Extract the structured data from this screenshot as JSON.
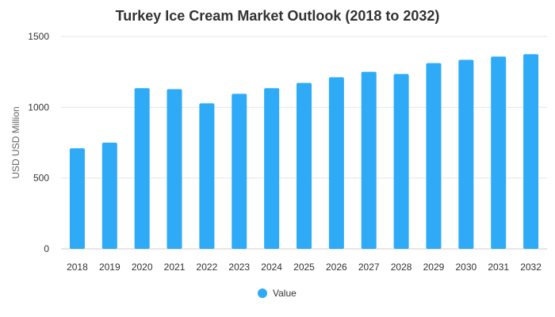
{
  "chart_data": {
    "type": "bar",
    "title": "Turkey Ice Cream Market Outlook (2018 to 2032)",
    "xlabel": "",
    "ylabel": "USD USD Million",
    "ylim": [
      0,
      1500
    ],
    "yticks": [
      0,
      500,
      1000,
      1500
    ],
    "grid": true,
    "legend_position": "bottom",
    "categories": [
      "2018",
      "2019",
      "2020",
      "2021",
      "2022",
      "2023",
      "2024",
      "2025",
      "2026",
      "2027",
      "2028",
      "2029",
      "2030",
      "2031",
      "2032"
    ],
    "series": [
      {
        "name": "Value",
        "color": "#2eaaf7",
        "values": [
          710,
          750,
          1135,
          1128,
          1028,
          1095,
          1135,
          1172,
          1212,
          1250,
          1235,
          1312,
          1335,
          1358,
          1375
        ]
      }
    ]
  }
}
